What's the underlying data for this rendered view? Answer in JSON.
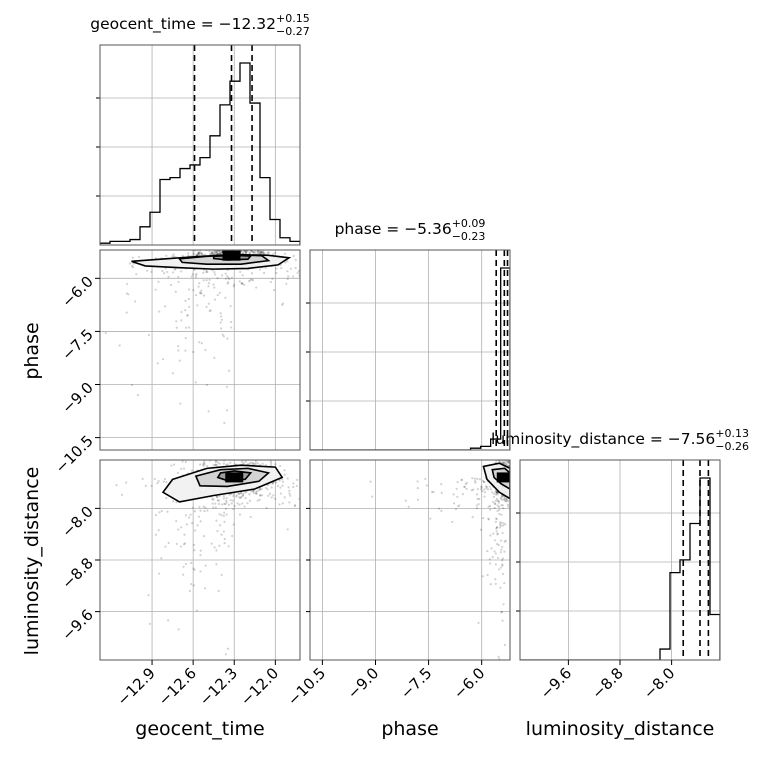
{
  "chart_data": {
    "type": "corner",
    "parameters": [
      "geocent_time",
      "phase",
      "luminosity_distance"
    ],
    "axis_labels": {
      "geocent_time": "geocent_time",
      "phase": "phase",
      "luminosity_distance": "luminosity_distance"
    },
    "ranges": {
      "geocent_time": [
        -13.28,
        -11.82
      ],
      "phase": [
        -10.85,
        -5.2
      ],
      "luminosity_distance": [
        -10.35,
        -7.25
      ]
    },
    "ticks": {
      "geocent_time": {
        "values": [
          -12.9,
          -12.6,
          -12.3,
          -12.0
        ],
        "labels": [
          "−12.9",
          "−12.6",
          "−12.3",
          "−12.0"
        ]
      },
      "phase": {
        "values": [
          -10.5,
          -9.0,
          -7.5,
          -6.0
        ],
        "labels": [
          "−10.5",
          "−9.0",
          "−7.5",
          "−6.0"
        ]
      },
      "luminosity_distance": {
        "values": [
          -9.6,
          -8.8,
          -8.0
        ],
        "labels": [
          "−9.6",
          "−8.8",
          "−8.0"
        ]
      }
    },
    "titles": [
      {
        "param": "geocent_time",
        "prefix": "geocent_time = ",
        "median": "−12.32",
        "plus": "+0.15",
        "minus": "−0.27"
      },
      {
        "param": "phase",
        "prefix": "phase = ",
        "median": "−5.36",
        "plus": "+0.09",
        "minus": "−0.23"
      },
      {
        "param": "luminosity_distance",
        "prefix": "luminosity_distance = ",
        "median": "−7.56",
        "plus": "+0.13",
        "minus": "−0.26"
      }
    ],
    "quantiles": {
      "geocent_time": [
        -12.59,
        -12.32,
        -12.17
      ],
      "phase": [
        -5.59,
        -5.36,
        -5.27
      ],
      "luminosity_distance": [
        -7.82,
        -7.56,
        -7.43
      ]
    },
    "histograms": {
      "geocent_time": {
        "edges": [
          -13.28,
          -13.207,
          -13.134,
          -13.061,
          -12.988,
          -12.915,
          -12.842,
          -12.769,
          -12.696,
          -12.623,
          -12.55,
          -12.477,
          -12.404,
          -12.331,
          -12.258,
          -12.185,
          -12.112,
          -12.039,
          -11.966,
          -11.893,
          -11.82
        ],
        "counts": [
          1,
          2,
          2,
          3,
          10,
          18,
          36,
          37,
          42,
          44,
          48,
          60,
          77,
          90,
          100,
          78,
          37,
          14,
          4,
          2
        ]
      },
      "phase": {
        "edges": [
          -10.85,
          -10.566,
          -10.283,
          -9.999,
          -9.716,
          -9.432,
          -9.149,
          -8.865,
          -8.582,
          -8.298,
          -8.015,
          -7.731,
          -7.448,
          -7.164,
          -6.881,
          -6.597,
          -6.314,
          -6.03,
          -5.747,
          -5.463,
          -5.2
        ],
        "counts": [
          0,
          0,
          0,
          0,
          0,
          0,
          0,
          0,
          0,
          0,
          0,
          0,
          0,
          0,
          0,
          0,
          1,
          2,
          6,
          100
        ]
      },
      "luminosity_distance": {
        "edges": [
          -10.35,
          -10.195,
          -10.04,
          -9.885,
          -9.73,
          -9.575,
          -9.42,
          -9.265,
          -9.11,
          -8.955,
          -8.8,
          -8.645,
          -8.49,
          -8.335,
          -8.18,
          -8.025,
          -7.87,
          -7.715,
          -7.56,
          -7.405,
          -7.25
        ],
        "counts": [
          0,
          0,
          0,
          0,
          0,
          0,
          0,
          0,
          0,
          0,
          0,
          0,
          0,
          0,
          6,
          48,
          55,
          75,
          100,
          25
        ]
      }
    },
    "contours_2d": [
      {
        "x": "geocent_time",
        "y": "phase",
        "levels": [
          [
            [
              -13.05,
              -5.52
            ],
            [
              -12.8,
              -5.45
            ],
            [
              -12.55,
              -5.38
            ],
            [
              -12.3,
              -5.33
            ],
            [
              -12.05,
              -5.35
            ],
            [
              -11.9,
              -5.42
            ],
            [
              -11.98,
              -5.62
            ],
            [
              -12.2,
              -5.72
            ],
            [
              -12.45,
              -5.74
            ],
            [
              -12.7,
              -5.7
            ],
            [
              -12.95,
              -5.65
            ]
          ],
          [
            [
              -12.7,
              -5.45
            ],
            [
              -12.5,
              -5.38
            ],
            [
              -12.3,
              -5.34
            ],
            [
              -12.1,
              -5.36
            ],
            [
              -12.05,
              -5.5
            ],
            [
              -12.25,
              -5.6
            ],
            [
              -12.5,
              -5.6
            ],
            [
              -12.68,
              -5.55
            ]
          ],
          [
            [
              -12.45,
              -5.38
            ],
            [
              -12.3,
              -5.35
            ],
            [
              -12.18,
              -5.37
            ],
            [
              -12.2,
              -5.46
            ],
            [
              -12.35,
              -5.48
            ],
            [
              -12.45,
              -5.44
            ]
          ]
        ],
        "peak": [
          -12.32,
          -5.36
        ]
      },
      {
        "x": "geocent_time",
        "y": "luminosity_distance",
        "levels": [
          [
            [
              -12.75,
              -7.55
            ],
            [
              -12.5,
              -7.38
            ],
            [
              -12.25,
              -7.33
            ],
            [
              -12.0,
              -7.36
            ],
            [
              -11.95,
              -7.52
            ],
            [
              -12.15,
              -7.7
            ],
            [
              -12.45,
              -7.8
            ],
            [
              -12.7,
              -7.9
            ],
            [
              -12.82,
              -7.75
            ]
          ],
          [
            [
              -12.58,
              -7.5
            ],
            [
              -12.4,
              -7.4
            ],
            [
              -12.2,
              -7.38
            ],
            [
              -12.05,
              -7.45
            ],
            [
              -12.12,
              -7.58
            ],
            [
              -12.35,
              -7.66
            ],
            [
              -12.55,
              -7.65
            ]
          ],
          [
            [
              -12.4,
              -7.45
            ],
            [
              -12.3,
              -7.42
            ],
            [
              -12.18,
              -7.45
            ],
            [
              -12.22,
              -7.55
            ],
            [
              -12.35,
              -7.57
            ],
            [
              -12.42,
              -7.52
            ]
          ]
        ],
        "peak": [
          -12.3,
          -7.52
        ]
      },
      {
        "x": "phase",
        "y": "luminosity_distance",
        "levels": [
          [
            [
              -5.95,
              -7.35
            ],
            [
              -5.5,
              -7.3
            ],
            [
              -5.2,
              -7.38
            ],
            [
              -5.2,
              -7.85
            ],
            [
              -5.5,
              -7.75
            ],
            [
              -5.85,
              -7.55
            ]
          ],
          [
            [
              -5.7,
              -7.4
            ],
            [
              -5.35,
              -7.38
            ],
            [
              -5.2,
              -7.45
            ],
            [
              -5.2,
              -7.7
            ],
            [
              -5.45,
              -7.62
            ],
            [
              -5.65,
              -7.52
            ]
          ]
        ],
        "peak": [
          -5.32,
          -7.52
        ]
      }
    ],
    "grid": true,
    "point_style": "faint black scatter with density contours"
  }
}
